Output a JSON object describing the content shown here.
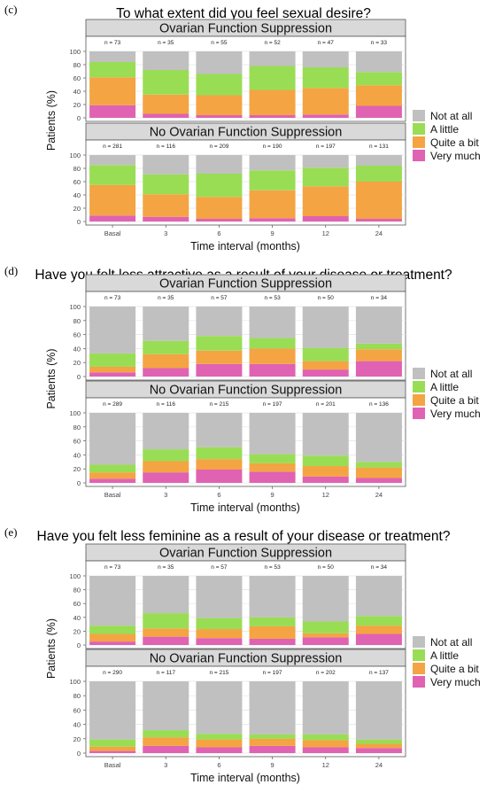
{
  "legend": [
    {
      "label": "Not at all",
      "color": "#c0c0c0"
    },
    {
      "label": "A little",
      "color": "#99dd55"
    },
    {
      "label": "Quite a bit",
      "color": "#f4a442"
    },
    {
      "label": "Very much",
      "color": "#e062b2"
    }
  ],
  "chart_data": [
    {
      "type": "bar",
      "stacked": true,
      "label": "(c)",
      "title": "To what extent did you feel sexual desire?",
      "xlabel": "Time interval (months)",
      "ylabel": "Patients (%)",
      "ylim": [
        0,
        100
      ],
      "yticks": [
        0,
        20,
        40,
        60,
        80,
        100
      ],
      "categories": [
        "Basal",
        "3",
        "6",
        "9",
        "12",
        "24"
      ],
      "legend_position": "right",
      "panels": [
        {
          "name": "Ovarian Function Suppression",
          "n": [
            "n = 73",
            "n = 35",
            "n = 55",
            "n = 52",
            "n = 47",
            "n = 33"
          ],
          "series": [
            {
              "name": "Very much",
              "values": [
                19,
                6,
                4,
                4,
                5,
                18
              ]
            },
            {
              "name": "Quite a bit",
              "values": [
                42,
                29,
                30,
                38,
                40,
                31
              ]
            },
            {
              "name": "A little",
              "values": [
                23,
                37,
                32,
                36,
                31,
                20
              ]
            },
            {
              "name": "Not at all",
              "values": [
                16,
                28,
                34,
                22,
                24,
                31
              ]
            }
          ]
        },
        {
          "name": "No Ovarian Function Suppression",
          "n": [
            "n = 281",
            "n = 116",
            "n = 209",
            "n = 190",
            "n = 197",
            "n = 131"
          ],
          "series": [
            {
              "name": "Very much",
              "values": [
                9,
                7,
                4,
                5,
                8,
                4
              ]
            },
            {
              "name": "Quite a bit",
              "values": [
                46,
                34,
                33,
                42,
                45,
                56
              ]
            },
            {
              "name": "A little",
              "values": [
                30,
                30,
                35,
                30,
                28,
                24
              ]
            },
            {
              "name": "Not at all",
              "values": [
                15,
                29,
                28,
                23,
                19,
                16
              ]
            }
          ]
        }
      ]
    },
    {
      "type": "bar",
      "stacked": true,
      "label": "(d)",
      "title": "Have you felt less attractive as a result of your disease or treatment?",
      "xlabel": "Time interval (months)",
      "ylabel": "Patients (%)",
      "ylim": [
        0,
        100
      ],
      "yticks": [
        0,
        20,
        40,
        60,
        80,
        100
      ],
      "categories": [
        "Basal",
        "3",
        "6",
        "9",
        "12",
        "24"
      ],
      "legend_position": "right",
      "panels": [
        {
          "name": "Ovarian Function Suppression",
          "n": [
            "n = 73",
            "n = 35",
            "n = 57",
            "n = 53",
            "n = 50",
            "n = 34"
          ],
          "series": [
            {
              "name": "Very much",
              "values": [
                6,
                12,
                18,
                18,
                10,
                22
              ]
            },
            {
              "name": "Quite a bit",
              "values": [
                8,
                20,
                19,
                22,
                12,
                17
              ]
            },
            {
              "name": "A little",
              "values": [
                19,
                19,
                21,
                15,
                19,
                8
              ]
            },
            {
              "name": "Not at all",
              "values": [
                67,
                49,
                42,
                45,
                59,
                53
              ]
            }
          ]
        },
        {
          "name": "No Ovarian Function Suppression",
          "n": [
            "n = 289",
            "n = 116",
            "n = 215",
            "n = 197",
            "n = 201",
            "n = 136"
          ],
          "series": [
            {
              "name": "Very much",
              "values": [
                6,
                15,
                19,
                16,
                9,
                7
              ]
            },
            {
              "name": "Quite a bit",
              "values": [
                9,
                16,
                15,
                12,
                15,
                15
              ]
            },
            {
              "name": "A little",
              "values": [
                11,
                17,
                17,
                13,
                15,
                8
              ]
            },
            {
              "name": "Not at all",
              "values": [
                74,
                52,
                49,
                59,
                61,
                70
              ]
            }
          ]
        }
      ]
    },
    {
      "type": "bar",
      "stacked": true,
      "label": "(e)",
      "title": "Have you felt less feminine as a result of your disease or treatment?",
      "xlabel": "Time interval (months)",
      "ylabel": "Patients (%)",
      "ylim": [
        0,
        100
      ],
      "yticks": [
        0,
        20,
        40,
        60,
        80,
        100
      ],
      "categories": [
        "Basal",
        "3",
        "6",
        "9",
        "12",
        "24"
      ],
      "legend_position": "right",
      "panels": [
        {
          "name": "Ovarian Function Suppression",
          "n": [
            "n = 73",
            "n = 35",
            "n = 57",
            "n = 53",
            "n = 50",
            "n = 34"
          ],
          "series": [
            {
              "name": "Very much",
              "values": [
                5,
                12,
                10,
                9,
                11,
                16
              ]
            },
            {
              "name": "Quite a bit",
              "values": [
                11,
                12,
                13,
                18,
                6,
                12
              ]
            },
            {
              "name": "A little",
              "values": [
                12,
                22,
                16,
                13,
                17,
                14
              ]
            },
            {
              "name": "Not at all",
              "values": [
                72,
                54,
                61,
                60,
                66,
                58
              ]
            }
          ]
        },
        {
          "name": "No Ovarian Function Suppression",
          "n": [
            "n = 290",
            "n = 117",
            "n = 215",
            "n = 197",
            "n = 202",
            "n = 137"
          ],
          "series": [
            {
              "name": "Very much",
              "values": [
                3,
                10,
                8,
                10,
                8,
                7
              ]
            },
            {
              "name": "Quite a bit",
              "values": [
                6,
                12,
                11,
                10,
                10,
                6
              ]
            },
            {
              "name": "A little",
              "values": [
                10,
                10,
                8,
                6,
                8,
                6
              ]
            },
            {
              "name": "Not at all",
              "values": [
                81,
                68,
                73,
                74,
                74,
                81
              ]
            }
          ]
        }
      ]
    }
  ]
}
